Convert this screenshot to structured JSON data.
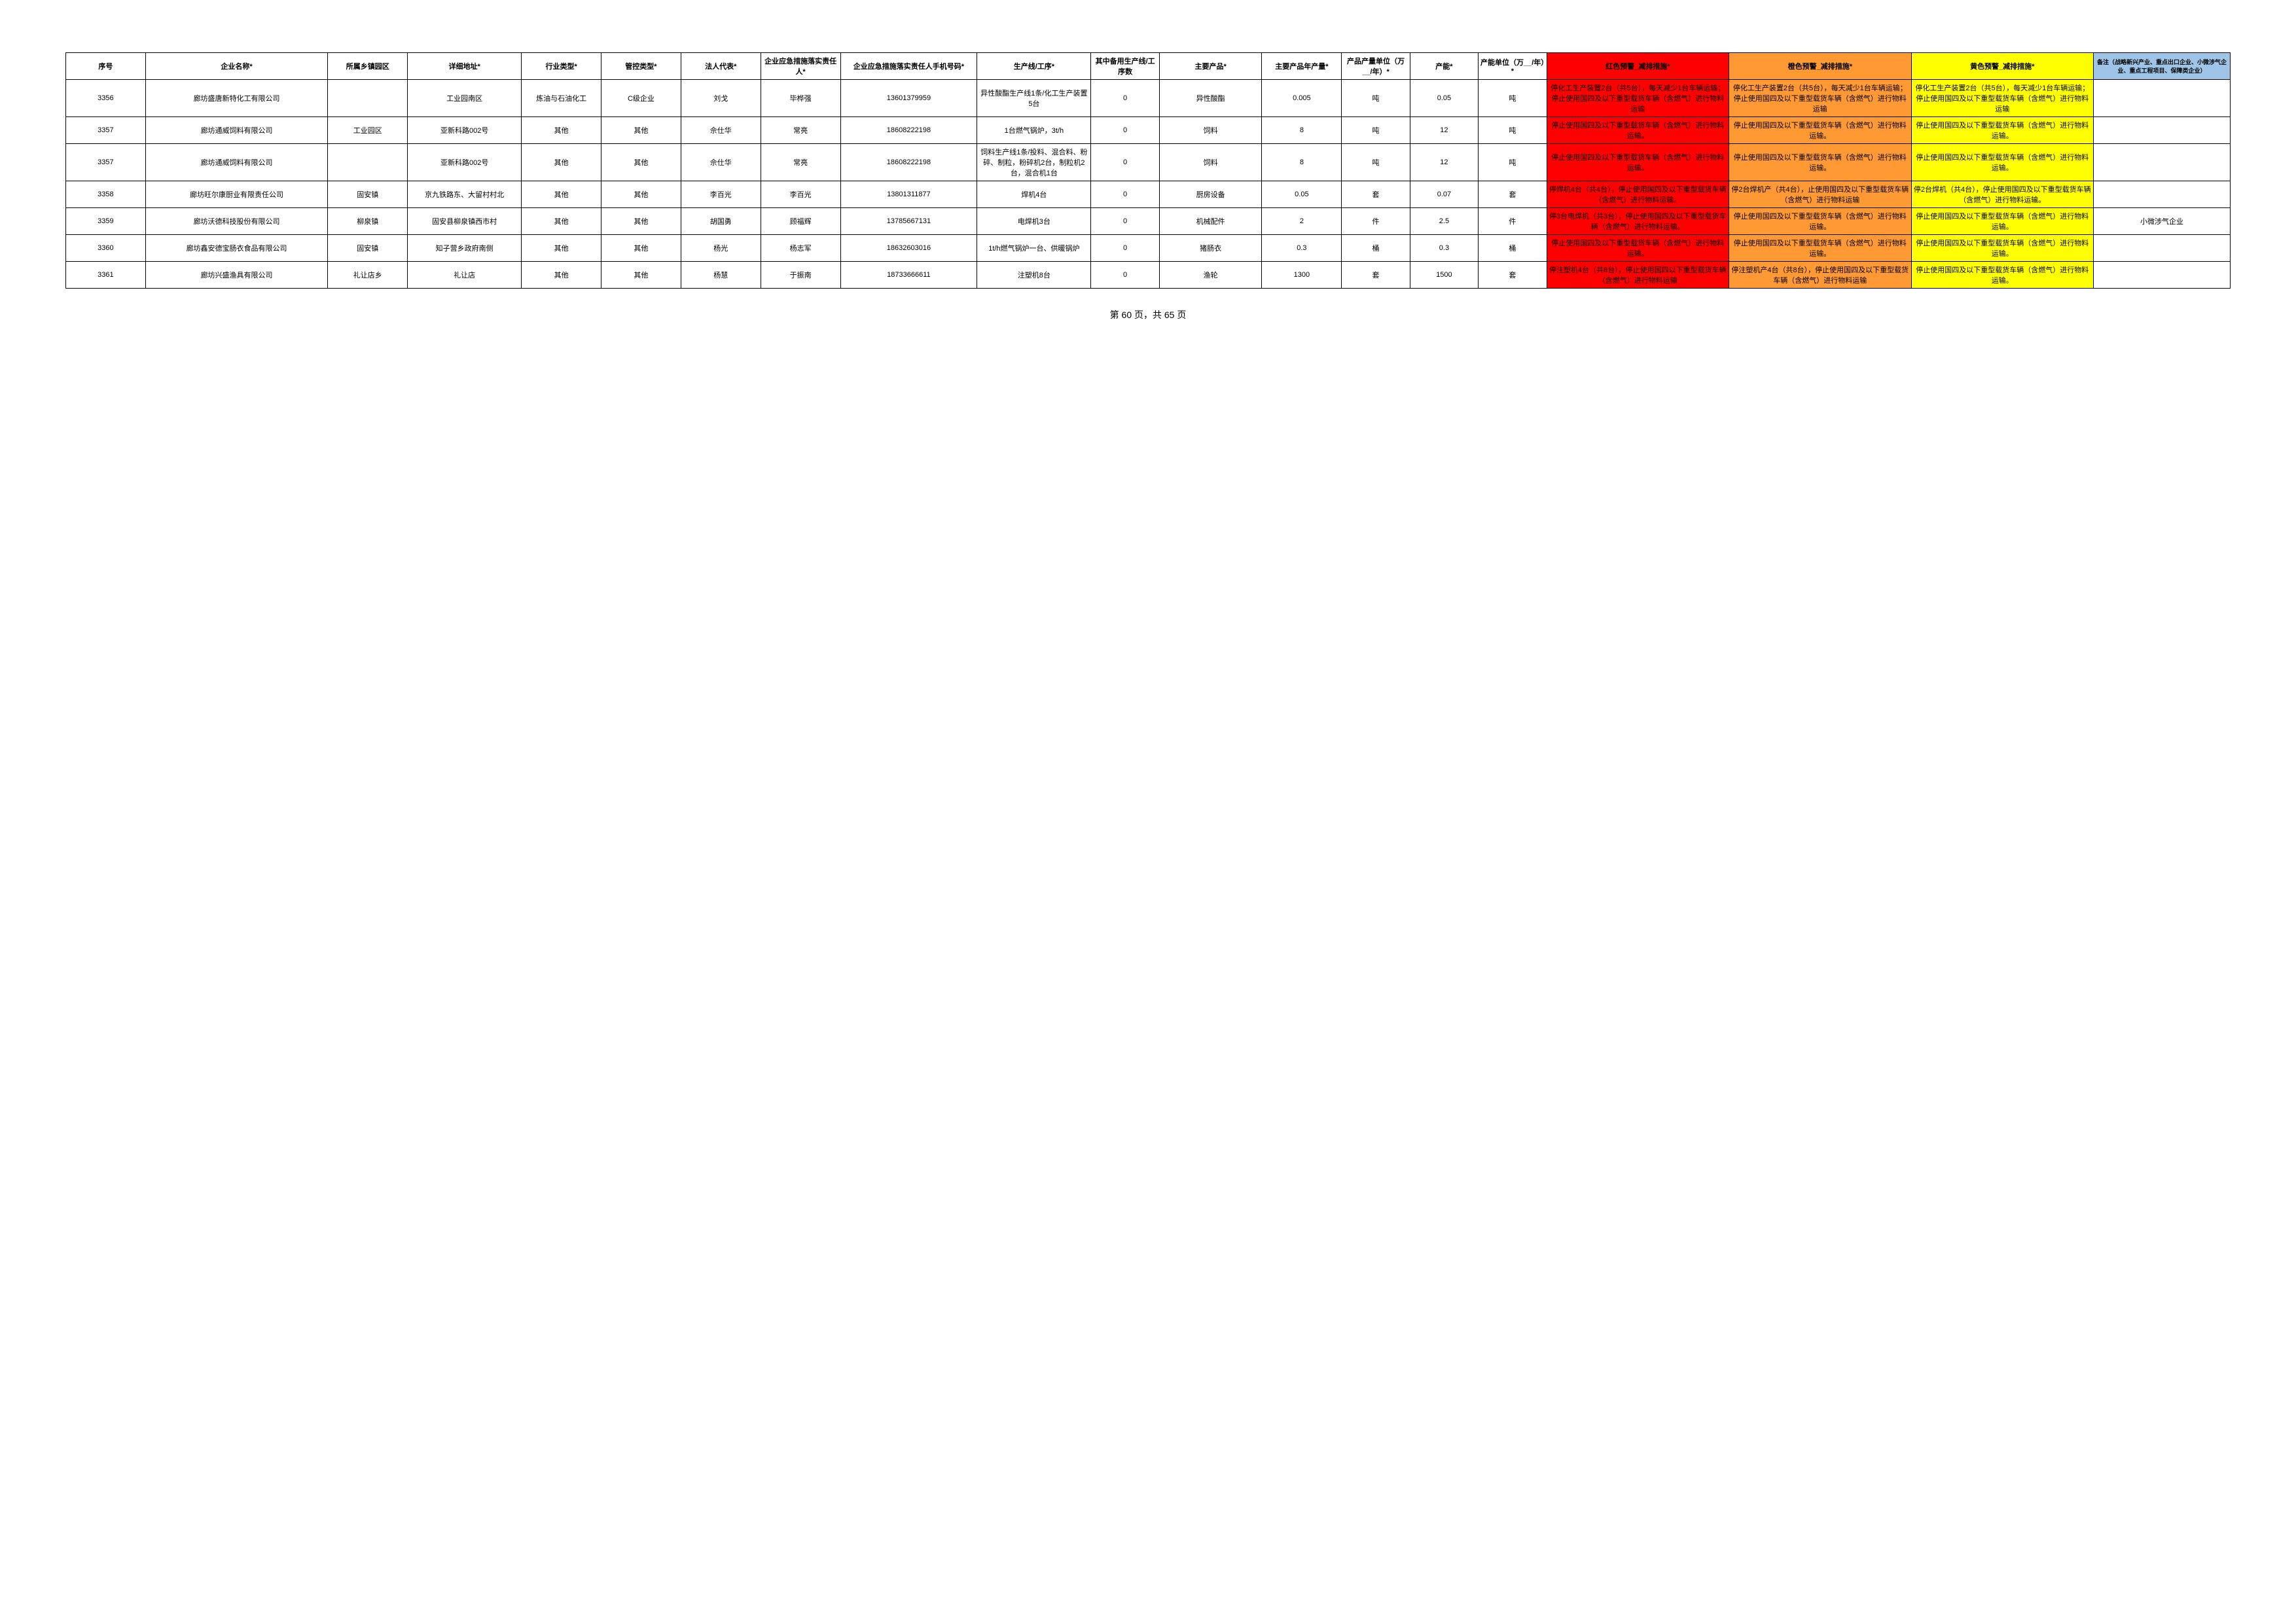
{
  "page_footer": "第 60 页，共 65 页",
  "header_bg_notes": "#9ec5e8",
  "color_red": "#ff0000",
  "color_orange": "#ff9933",
  "color_yellow": "#ffff00",
  "columns": [
    {
      "label": "序号",
      "width": "3.5%"
    },
    {
      "label": "企业名称*",
      "width": "8%"
    },
    {
      "label": "所属乡镇园区",
      "width": "3.5%"
    },
    {
      "label": "详细地址*",
      "width": "5%"
    },
    {
      "label": "行业类型*",
      "width": "3.5%"
    },
    {
      "label": "管控类型*",
      "width": "3.5%"
    },
    {
      "label": "法人代表*",
      "width": "3.5%"
    },
    {
      "label": "企业应急措施落实责任人*",
      "width": "3.5%"
    },
    {
      "label": "企业应急措施落实责任人手机号码*",
      "width": "6%"
    },
    {
      "label": "生产线/工序*",
      "width": "5%"
    },
    {
      "label": "其中备用生产线/工序数",
      "width": "3%"
    },
    {
      "label": "主要产品*",
      "width": "4.5%"
    },
    {
      "label": "主要产品年产量*",
      "width": "3.5%"
    },
    {
      "label": "产品产量单位（万__/年）*",
      "width": "3%"
    },
    {
      "label": "产能*",
      "width": "3%"
    },
    {
      "label": "产能单位（万__/年）*",
      "width": "3%"
    },
    {
      "label": "红色预警_减排措施*",
      "width": "8%"
    },
    {
      "label": "橙色预警_减排措施*",
      "width": "8%"
    },
    {
      "label": "黄色预警_减排措施*",
      "width": "8%"
    },
    {
      "label": "备注（战略新兴产业、重点出口企业、小微涉气企业、重点工程项目、保障类企业）",
      "width": "6%"
    }
  ],
  "rows": [
    {
      "seq": "3356",
      "name": "廊坊盛唐新特化工有限公司",
      "town": "",
      "address": "工业园南区",
      "industry": "炼油与石油化工",
      "control": "C级企业",
      "legal": "刘戈",
      "person": "毕桦强",
      "phone": "13601379959",
      "line": "异性酸酯生产线1条/化工生产装置5台",
      "backup": "0",
      "product": "异性酸酯",
      "output": "0.005",
      "output_unit": "吨",
      "capacity": "0.05",
      "capacity_unit": "吨",
      "red": "停化工生产装置2台（共5台），每天减少1台车辆运输；停止使用国四及以下重型载货车辆（含燃气）进行物料运输",
      "orange": "停化工生产装置2台（共5台），每天减少1台车辆运输；停止使用国四及以下重型载货车辆（含燃气）进行物料运输",
      "yellow": "停化工生产装置2台（共5台），每天减少1台车辆运输；停止使用国四及以下重型载货车辆（含燃气）进行物料运输",
      "notes": ""
    },
    {
      "seq": "3357",
      "name": "廊坊通威饲料有限公司",
      "town": "工业园区",
      "address": "亚新科路002号",
      "industry": "其他",
      "control": "其他",
      "legal": "佘仕华",
      "person": "常亮",
      "phone": "18608222198",
      "line": "1台燃气锅炉，3t/h",
      "backup": "0",
      "product": "饲料",
      "output": "8",
      "output_unit": "吨",
      "capacity": "12",
      "capacity_unit": "吨",
      "red": "停止使用国四及以下重型载货车辆（含燃气）进行物料运输。",
      "orange": "停止使用国四及以下重型载货车辆（含燃气）进行物料运输。",
      "yellow": "停止使用国四及以下重型载货车辆（含燃气）进行物料运输。",
      "notes": ""
    },
    {
      "seq": "3357",
      "name": "廊坊通威饲料有限公司",
      "town": "",
      "address": "亚新科路002号",
      "industry": "其他",
      "control": "其他",
      "legal": "佘仕华",
      "person": "常亮",
      "phone": "18608222198",
      "line": "饲料生产线1条/投料、混合料、粉碎、制粒，粉碎机2台，制粒机2台，混合机1台",
      "backup": "0",
      "product": "饲料",
      "output": "8",
      "output_unit": "吨",
      "capacity": "12",
      "capacity_unit": "吨",
      "red": "停止使用国四及以下重型载货车辆（含燃气）进行物料运输。",
      "orange": "停止使用国四及以下重型载货车辆（含燃气）进行物料运输。",
      "yellow": "停止使用国四及以下重型载货车辆（含燃气）进行物料运输。",
      "notes": ""
    },
    {
      "seq": "3358",
      "name": "廊坊旺尔康厨业有限责任公司",
      "town": "固安镇",
      "address": "京九铁路东、大留村村北",
      "industry": "其他",
      "control": "其他",
      "legal": "李百光",
      "person": "李百光",
      "phone": "13801311877",
      "line": "焊机4台",
      "backup": "0",
      "product": "厨房设备",
      "output": "0.05",
      "output_unit": "套",
      "capacity": "0.07",
      "capacity_unit": "套",
      "red": "停焊机4台（共4台），停止使用国四及以下重型载货车辆（含燃气）进行物料运输。",
      "orange": "停2台焊机产（共4台），止使用国四及以下重型载货车辆（含燃气）进行物料运输",
      "yellow": "停2台焊机（共4台），停止使用国四及以下重型载货车辆（含燃气）进行物料运输。",
      "notes": ""
    },
    {
      "seq": "3359",
      "name": "廊坊沃德科技股份有限公司",
      "town": "柳泉镇",
      "address": "固安县柳泉镇西市村",
      "industry": "其他",
      "control": "其他",
      "legal": "胡国勇",
      "person": "顾福辉",
      "phone": "13785667131",
      "line": "电焊机3台",
      "backup": "0",
      "product": "机械配件",
      "output": "2",
      "output_unit": "件",
      "capacity": "2.5",
      "capacity_unit": "件",
      "red": "停3台电焊机（共3台），停止使用国四及以下重型载货车辆（含燃气）进行物料运输。",
      "orange": "停止使用国四及以下重型载货车辆（含燃气）进行物料运输。",
      "yellow": "停止使用国四及以下重型载货车辆（含燃气）进行物料运输。",
      "notes": "小微涉气企业"
    },
    {
      "seq": "3360",
      "name": "廊坊鑫安德宝肠衣食品有限公司",
      "town": "固安镇",
      "address": "知子营乡政府南侧",
      "industry": "其他",
      "control": "其他",
      "legal": "杨光",
      "person": "杨志军",
      "phone": "18632603016",
      "line": "1t/h燃气锅炉一台、供暖锅炉",
      "backup": "0",
      "product": "猪肠衣",
      "output": "0.3",
      "output_unit": "桶",
      "capacity": "0.3",
      "capacity_unit": "桶",
      "red": "停止使用国四及以下重型载货车辆（含燃气）进行物料运输。",
      "orange": "停止使用国四及以下重型载货车辆（含燃气）进行物料运输。",
      "yellow": "停止使用国四及以下重型载货车辆（含燃气）进行物料运输。",
      "notes": ""
    },
    {
      "seq": "3361",
      "name": "廊坊兴盛渔具有限公司",
      "town": "礼让店乡",
      "address": "礼让店",
      "industry": "其他",
      "control": "其他",
      "legal": "杨慧",
      "person": "于振南",
      "phone": "18733666611",
      "line": "注塑机8台",
      "backup": "0",
      "product": "渔轮",
      "output": "1300",
      "output_unit": "套",
      "capacity": "1500",
      "capacity_unit": "套",
      "red": "停注塑机4台（共8台），停止使用国四以下重型载货车辆（含燃气）进行物料运输",
      "orange": "停注塑机产4台（共8台），停止使用国四及以下重型载货车辆（含燃气）进行物料运输",
      "yellow": "停止使用国四及以下重型载货车辆（含燃气）进行物料运输。",
      "notes": ""
    }
  ]
}
